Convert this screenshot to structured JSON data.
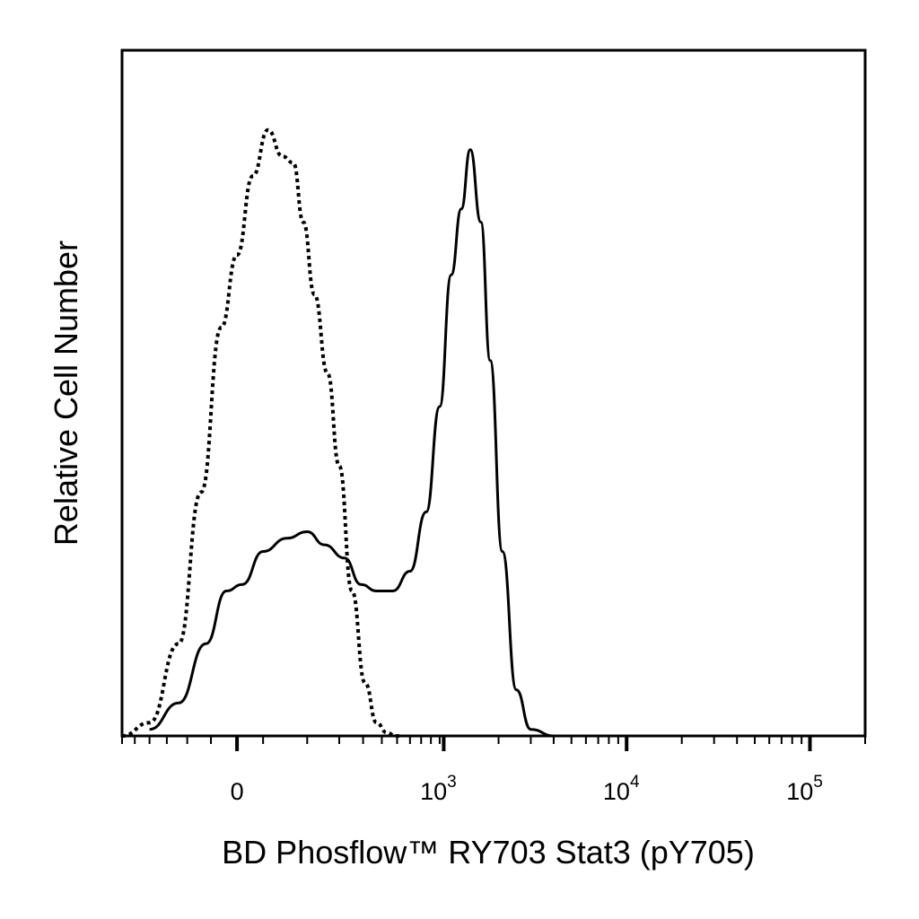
{
  "chart_data": {
    "type": "line",
    "xlabel": "BD Phosflow™ RY703  Stat3 (pY705)",
    "ylabel": "Relative Cell Number",
    "x_scale": "biexponential",
    "xlim": [
      -300,
      200000
    ],
    "ylim": [
      0,
      100
    ],
    "grid": false,
    "x_ticks": [
      {
        "value": 0,
        "base": "0",
        "exp": ""
      },
      {
        "value": 1000,
        "base": "10",
        "exp": "3"
      },
      {
        "value": 10000,
        "base": "10",
        "exp": "4"
      },
      {
        "value": 100000,
        "base": "10",
        "exp": "5"
      }
    ],
    "series": [
      {
        "style": "dotted",
        "x": [
          -300,
          -200,
          -120,
          -70,
          -30,
          0,
          30,
          60,
          90,
          115,
          140,
          170,
          210,
          250,
          300,
          360,
          420,
          480,
          540,
          580
        ],
        "y": [
          0,
          2,
          14,
          37,
          62,
          73,
          85,
          92,
          88,
          87,
          78,
          67,
          55,
          41,
          22,
          8,
          2,
          0.5,
          0,
          0
        ]
      },
      {
        "style": "solid",
        "x": [
          -200,
          -120,
          -60,
          -20,
          10,
          50,
          100,
          150,
          200,
          270,
          340,
          420,
          520,
          650,
          800,
          950,
          1100,
          1250,
          1400,
          1600,
          1800,
          2100,
          2500,
          3000,
          4000,
          200000
        ],
        "y": [
          1,
          5,
          14,
          22,
          23,
          28,
          30,
          31,
          29,
          27,
          23,
          22,
          22,
          25,
          34,
          50,
          70,
          80,
          89,
          78,
          57,
          28,
          7,
          1,
          0,
          0
        ]
      }
    ]
  }
}
